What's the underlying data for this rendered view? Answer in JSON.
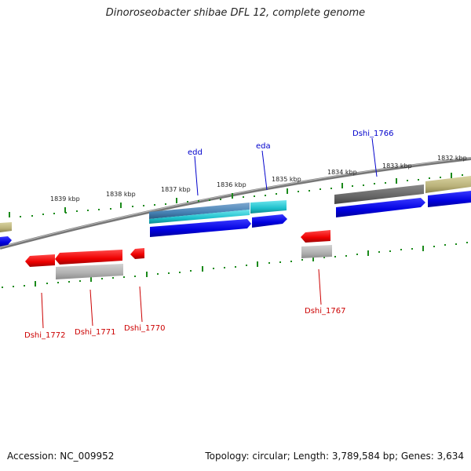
{
  "title": "Dinoroseobacter shibae DFL 12, complete genome",
  "footer": {
    "accession": "Accession: NC_009952",
    "stats": "Topology: circular; Length: 3,789,584 bp; Genes: 3,634"
  },
  "ruler_labels": [
    "1839 kbp",
    "1838 kbp",
    "1837 kbp",
    "1836 kbp",
    "1835 kbp",
    "1834 kbp",
    "1833 kbp",
    "1832 kbp"
  ],
  "gene_labels": {
    "edd": "edd",
    "eda": "eda",
    "dshi_1766": "Dshi_1766",
    "dshi_1772": "Dshi_1772",
    "dshi_1771": "Dshi_1771",
    "dshi_1770": "Dshi_1770",
    "dshi_1767": "Dshi_1767"
  },
  "colors": {
    "forward_label": "#0000cc",
    "reverse_label": "#cc0000",
    "cds_blue": "#0a0ae6",
    "gene_red": "#ee1111",
    "cyan": "#22c4cc",
    "steelblue": "#4682b4",
    "gray_dark": "#666666",
    "gray_light": "#aaaaaa",
    "olive": "#b8b07a",
    "tick_green": "#1a8a1a",
    "backbone": "#777777"
  }
}
